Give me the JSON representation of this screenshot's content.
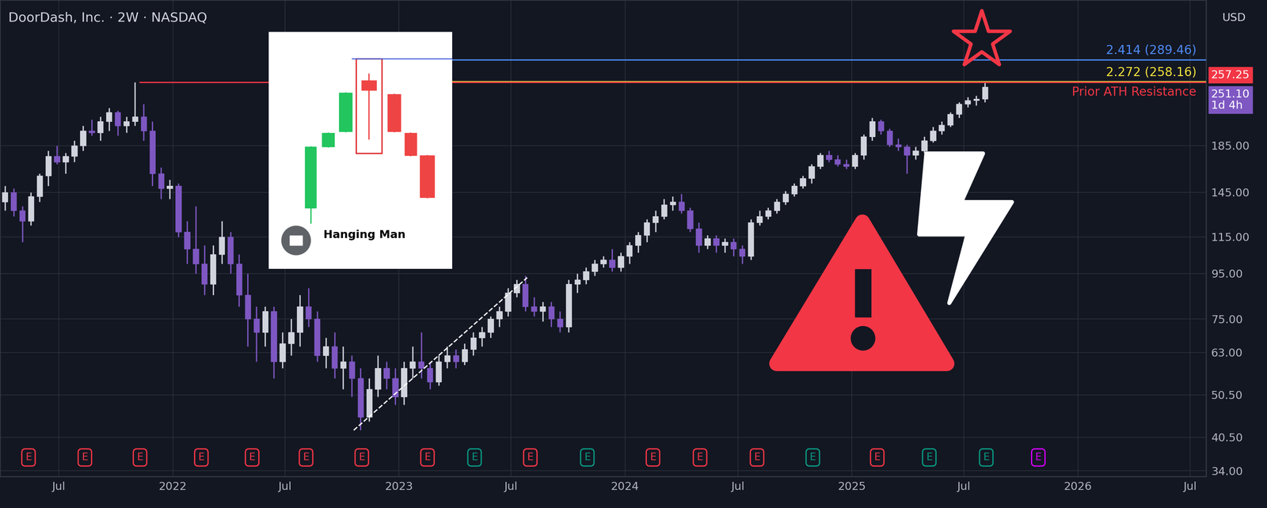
{
  "chart_data": {
    "type": "candlestick",
    "title": "DoorDash, Inc. · 2W · NASDAQ",
    "currency": "USD",
    "x": [
      "2021-04-05",
      "2021-04-19",
      "2021-05-03",
      "2021-05-17",
      "2021-05-31",
      "2021-06-14",
      "2021-06-28",
      "2021-07-12",
      "2021-07-26",
      "2021-08-09",
      "2021-08-23",
      "2021-09-06",
      "2021-09-20",
      "2021-10-04",
      "2021-10-18",
      "2021-11-01",
      "2021-11-15",
      "2021-11-29",
      "2021-12-13",
      "2021-12-27",
      "2022-01-10",
      "2022-01-24",
      "2022-02-07",
      "2022-02-21",
      "2022-03-07",
      "2022-03-21",
      "2022-04-04",
      "2022-04-18",
      "2022-05-02",
      "2022-05-16",
      "2022-05-30",
      "2022-06-13",
      "2022-06-27",
      "2022-07-11",
      "2022-07-25",
      "2022-08-08",
      "2022-08-22",
      "2022-09-05",
      "2022-09-19",
      "2022-10-03",
      "2022-10-17",
      "2022-10-31",
      "2022-11-14",
      "2022-11-28",
      "2022-12-12",
      "2022-12-26",
      "2023-01-09",
      "2023-01-23",
      "2023-02-06",
      "2023-02-20",
      "2023-03-06",
      "2023-03-20",
      "2023-04-03",
      "2023-04-17",
      "2023-05-01",
      "2023-05-15",
      "2023-05-29",
      "2023-06-12",
      "2023-06-26",
      "2023-07-10",
      "2023-07-24",
      "2023-08-07",
      "2023-08-21",
      "2023-09-04",
      "2023-09-18",
      "2023-10-02",
      "2023-10-16",
      "2023-10-30",
      "2023-11-13",
      "2023-11-27",
      "2023-12-11",
      "2023-12-25",
      "2024-01-08",
      "2024-01-22",
      "2024-02-05",
      "2024-02-19",
      "2024-03-04",
      "2024-03-18",
      "2024-04-01",
      "2024-04-15",
      "2024-04-29",
      "2024-05-13",
      "2024-05-27",
      "2024-06-10",
      "2024-06-24",
      "2024-07-08",
      "2024-07-22",
      "2024-08-05",
      "2024-08-19",
      "2024-09-02",
      "2024-09-16",
      "2024-09-30",
      "2024-10-14",
      "2024-10-28",
      "2024-11-11",
      "2024-11-25",
      "2024-12-09",
      "2024-12-23",
      "2025-01-06",
      "2025-01-20",
      "2025-02-03",
      "2025-02-17",
      "2025-03-03",
      "2025-03-17",
      "2025-03-31",
      "2025-04-14",
      "2025-04-28",
      "2025-05-12",
      "2025-05-26",
      "2025-06-09",
      "2025-06-23",
      "2025-07-07",
      "2025-07-21",
      "2025-08-04"
    ],
    "open": [
      138,
      145,
      132,
      125,
      142,
      158,
      175,
      170,
      175,
      185,
      200,
      198,
      210,
      220,
      205,
      210,
      215,
      200,
      160,
      148,
      150,
      118,
      108,
      100,
      90,
      105,
      115,
      100,
      85,
      75,
      70,
      78,
      60,
      66,
      70,
      80,
      75,
      62,
      65,
      58,
      60,
      55,
      45,
      52,
      58,
      55,
      50,
      58,
      60,
      58,
      54,
      60,
      62,
      60,
      64,
      68,
      70,
      75,
      78,
      86,
      90,
      80,
      78,
      80,
      75,
      72,
      90,
      92,
      96,
      100,
      102,
      98,
      104,
      110,
      116,
      124,
      128,
      136,
      138,
      132,
      120,
      110,
      114,
      110,
      112,
      108,
      104,
      124,
      128,
      132,
      138,
      144,
      150,
      156,
      166,
      176,
      172,
      168,
      166,
      176,
      194,
      210,
      200,
      186,
      184,
      176,
      180,
      190,
      200,
      206,
      218,
      230,
      234,
      236
    ],
    "high": [
      150,
      148,
      135,
      145,
      160,
      180,
      185,
      178,
      190,
      205,
      212,
      215,
      225,
      222,
      215,
      257.25,
      230,
      210,
      165,
      155,
      152,
      125,
      135,
      110,
      110,
      125,
      118,
      105,
      95,
      80,
      80,
      80,
      70,
      75,
      85,
      88,
      78,
      68,
      70,
      65,
      62,
      58,
      55,
      62,
      60,
      58,
      60,
      65,
      70,
      60,
      62,
      65,
      64,
      66,
      70,
      72,
      76,
      80,
      88,
      92,
      94,
      84,
      82,
      82,
      78,
      92,
      95,
      98,
      102,
      104,
      108,
      106,
      112,
      118,
      126,
      132,
      140,
      142,
      144,
      134,
      124,
      116,
      116,
      114,
      114,
      110,
      126,
      132,
      134,
      140,
      146,
      152,
      158,
      168,
      178,
      180,
      176,
      172,
      178,
      196,
      214,
      212,
      202,
      192,
      186,
      184,
      194,
      204,
      210,
      220,
      232,
      238,
      240,
      259
    ],
    "low": [
      132,
      128,
      112,
      122,
      138,
      150,
      168,
      160,
      170,
      180,
      195,
      190,
      200,
      195,
      198,
      205,
      190,
      150,
      140,
      140,
      115,
      100,
      95,
      85,
      85,
      100,
      95,
      80,
      65,
      60,
      65,
      55,
      58,
      62,
      65,
      72,
      60,
      58,
      55,
      52,
      50,
      42,
      44,
      50,
      52,
      48,
      48,
      55,
      55,
      52,
      53,
      58,
      58,
      59,
      62,
      65,
      68,
      72,
      76,
      84,
      78,
      76,
      74,
      72,
      70,
      70,
      86,
      90,
      94,
      98,
      96,
      96,
      100,
      106,
      112,
      118,
      126,
      132,
      130,
      118,
      106,
      108,
      106,
      106,
      104,
      100,
      102,
      122,
      126,
      130,
      136,
      142,
      148,
      152,
      164,
      170,
      166,
      164,
      164,
      172,
      190,
      196,
      184,
      180,
      160,
      172,
      178,
      188,
      196,
      204,
      214,
      226,
      228,
      232
    ],
    "close": [
      145,
      132,
      125,
      142,
      158,
      175,
      170,
      175,
      185,
      200,
      198,
      210,
      220,
      205,
      210,
      215,
      200,
      160,
      148,
      150,
      118,
      108,
      100,
      90,
      105,
      115,
      100,
      85,
      75,
      70,
      78,
      60,
      66,
      70,
      80,
      75,
      62,
      65,
      58,
      60,
      55,
      45,
      52,
      58,
      55,
      50,
      58,
      60,
      58,
      54,
      60,
      62,
      60,
      64,
      68,
      70,
      75,
      78,
      86,
      90,
      80,
      78,
      80,
      75,
      72,
      90,
      92,
      96,
      100,
      102,
      98,
      104,
      110,
      116,
      124,
      128,
      136,
      138,
      132,
      120,
      110,
      114,
      110,
      112,
      108,
      104,
      124,
      128,
      132,
      138,
      144,
      150,
      156,
      166,
      176,
      172,
      168,
      166,
      176,
      194,
      210,
      200,
      186,
      184,
      176,
      180,
      190,
      200,
      206,
      218,
      230,
      234,
      236,
      251.1
    ],
    "log": "y",
    "grid": true,
    "xlim": [
      "2021-03-28",
      "2026-07-27"
    ],
    "xticks": [
      {
        "value": "2021-07-01",
        "label": "Jul"
      },
      {
        "value": "2022-01-01",
        "label": "2022"
      },
      {
        "value": "2022-07-01",
        "label": "Jul"
      },
      {
        "value": "2023-01-01",
        "label": "2023"
      },
      {
        "value": "2023-07-01",
        "label": "Jul"
      },
      {
        "value": "2024-01-01",
        "label": "2024"
      },
      {
        "value": "2024-07-01",
        "label": "Jul"
      },
      {
        "value": "2025-01-01",
        "label": "2025"
      },
      {
        "value": "2025-07-01",
        "label": "Jul"
      },
      {
        "value": "2026-01-01",
        "label": "2026"
      },
      {
        "value": "2026-07-01",
        "label": "Jul"
      }
    ],
    "ylim": [
      33,
      395
    ],
    "yticks": [
      {
        "value": 34,
        "label": "34.00"
      },
      {
        "value": 40.5,
        "label": "40.50"
      },
      {
        "value": 50.5,
        "label": "50.50"
      },
      {
        "value": 63,
        "label": "63.00"
      },
      {
        "value": 75,
        "label": "75.00"
      },
      {
        "value": 95,
        "label": "95.00"
      },
      {
        "value": 115,
        "label": "115.00"
      },
      {
        "value": 145,
        "label": "145.00"
      },
      {
        "value": 185,
        "label": "185.00"
      }
    ],
    "levels": [
      {
        "label": "2.414 (289.46)",
        "value": 289.46,
        "color": "#4f8bf5",
        "start": "2022-11-01"
      },
      {
        "label": "2.272 (258.16)",
        "value": 258.16,
        "color": "#f5e23b",
        "start": "2022-11-01"
      },
      {
        "label": "Prior ATH Resistance",
        "value": 257.25,
        "color": "#f23645",
        "start": "2021-11-08"
      }
    ],
    "price_labels": [
      {
        "label": "257.25",
        "value": 257.25,
        "color": "#f23645"
      },
      {
        "label": "251.10",
        "value": 251.1,
        "countdown": "1d 4h",
        "color": "#7e57c2"
      }
    ],
    "trendline": {
      "x": [
        "2022-10-20",
        "2023-07-27"
      ],
      "values": [
        42,
        93
      ],
      "line_style": "dashed",
      "color": "#ffffff"
    },
    "earnings": {
      "label": "E",
      "x": [
        "2021-05-13",
        "2021-08-12",
        "2021-11-09",
        "2022-02-16",
        "2022-05-09",
        "2022-08-04",
        "2022-11-02",
        "2023-02-16",
        "2023-05-03",
        "2023-08-01",
        "2023-11-01",
        "2024-02-15",
        "2024-05-01",
        "2024-08-01",
        "2024-10-30",
        "2025-02-11",
        "2025-05-06",
        "2025-08-06",
        "2025-10-29"
      ],
      "colors": [
        "#f23645",
        "#f23645",
        "#f23645",
        "#f23645",
        "#f23645",
        "#f23645",
        "#f23645",
        "#f23645",
        "#089981",
        "#f23645",
        "#089981",
        "#f23645",
        "#f23645",
        "#f23645",
        "#089981",
        "#f23645",
        "#089981",
        "#089981",
        "#d500f9"
      ]
    },
    "annotations": {
      "inset_label": "Hanging Man"
    }
  }
}
